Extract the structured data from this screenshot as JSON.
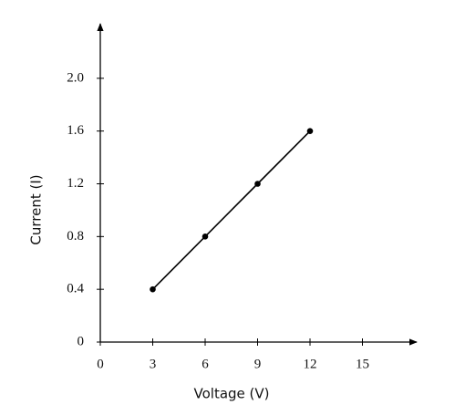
{
  "chart_data": {
    "type": "line",
    "x_label": "Voltage (V)",
    "y_label": "Current (I)",
    "x": [
      3,
      6,
      9,
      12
    ],
    "values": [
      0.4,
      0.8,
      1.2,
      1.6
    ],
    "color": "#000000",
    "xlim": [
      0,
      18
    ],
    "ylim": [
      0,
      2.4
    ],
    "xticks": [
      0,
      3,
      6,
      9,
      12,
      15
    ],
    "yticks": [
      0,
      0.4,
      0.8,
      1.2,
      1.6,
      {
        "value": 2,
        "label": "2.0"
      }
    ],
    "grid": false,
    "markers": true
  }
}
